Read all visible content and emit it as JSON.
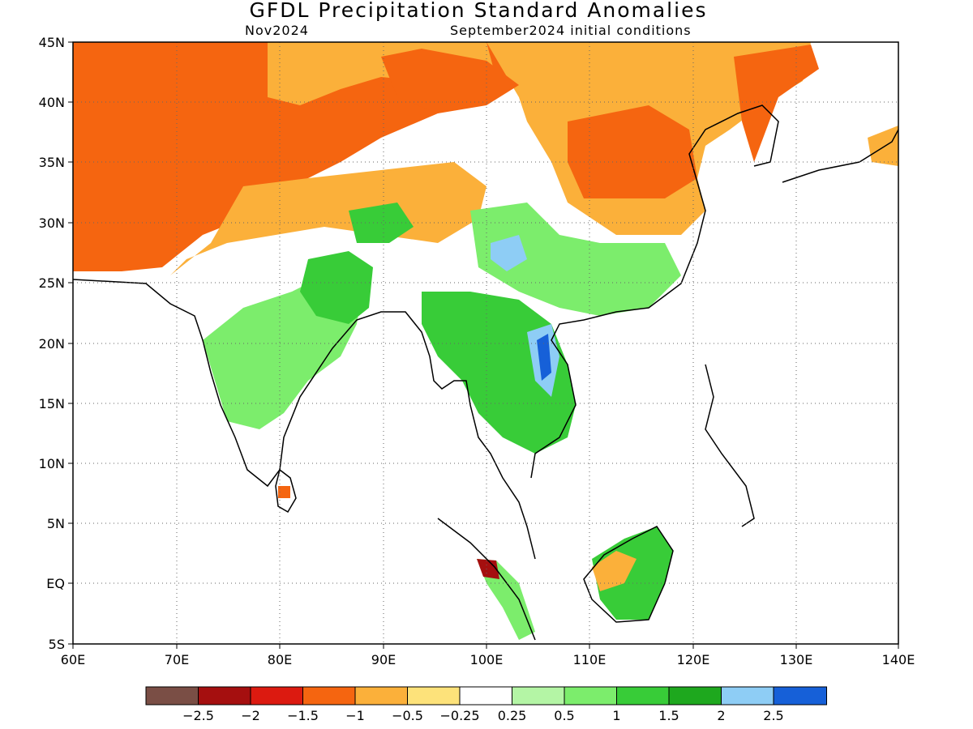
{
  "title": "GFDL Precipitation Standard Anomalies",
  "subtitle_left": "Nov2024",
  "subtitle_right": "September2024 initial conditions",
  "map": {
    "lon_range": [
      60,
      140
    ],
    "lat_range": [
      -5,
      45
    ],
    "x_ticks": [
      "60E",
      "70E",
      "80E",
      "90E",
      "100E",
      "110E",
      "120E",
      "130E",
      "140E"
    ],
    "y_ticks": [
      "45N",
      "40N",
      "35N",
      "30N",
      "25N",
      "20N",
      "15N",
      "10N",
      "5N",
      "EQ",
      "5S"
    ],
    "grid": "dotted"
  },
  "colorbar": {
    "colors": [
      "#7a4e45",
      "#a50f0f",
      "#dc1a10",
      "#f56510",
      "#fbb03a",
      "#fde27a",
      "#ffffff",
      "#b4f5a5",
      "#7ced6c",
      "#38cc38",
      "#1ea81e",
      "#8ecdf5",
      "#1660d8"
    ],
    "labels": [
      "−2.5",
      "−2",
      "−1.5",
      "−1",
      "−0.5",
      "−0.25",
      "0.25",
      "0.5",
      "1",
      "1.5",
      "2",
      "2.5"
    ]
  },
  "regions": [
    {
      "name": "central-asia-dry",
      "color": "#f56510"
    },
    {
      "name": "tibet-dry",
      "color": "#fbb03a"
    },
    {
      "name": "mongolia-dry",
      "color": "#fbb03a"
    },
    {
      "name": "china-dry",
      "color": "#f56510"
    },
    {
      "name": "india-wet",
      "color": "#7ced6c"
    },
    {
      "name": "indochina-wet",
      "color": "#38cc38"
    },
    {
      "name": "borneo-wet",
      "color": "#38cc38"
    }
  ]
}
